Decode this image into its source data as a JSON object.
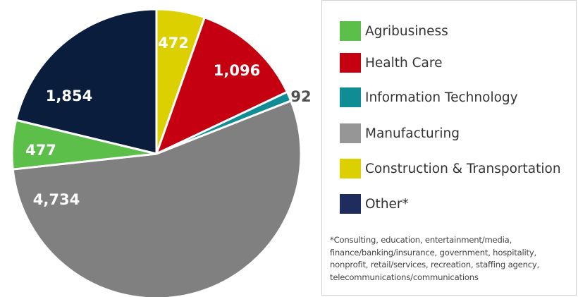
{
  "chart_data": {
    "type": "pie",
    "slices": [
      {
        "name": "Construction & Transportation",
        "value": 472,
        "label": "472",
        "color": "#dcd000"
      },
      {
        "name": "Health Care",
        "value": 1096,
        "label": "1,096",
        "color": "#c50010"
      },
      {
        "name": "Information Technology",
        "value": 92,
        "label": "92",
        "color": "#0f8c94"
      },
      {
        "name": "Manufacturing",
        "value": 4734,
        "label": "4,734",
        "color": "#808080"
      },
      {
        "name": "Agribusiness",
        "value": 477,
        "label": "477",
        "color": "#5cbf4a"
      },
      {
        "name": "Other*",
        "value": 1854,
        "label": "1,854",
        "color": "#0b1d3d"
      }
    ],
    "start_angle_deg": 0,
    "direction": "clockwise"
  },
  "legend": {
    "items": [
      {
        "label": "Agribusiness",
        "color": "#5cbf4a"
      },
      {
        "label": "Health Care",
        "color": "#c50010"
      },
      {
        "label": "Information Technology",
        "color": "#0f8c94"
      },
      {
        "label": "Manufacturing",
        "color": "#969696"
      },
      {
        "label": "Construction & Transportation",
        "color": "#dcd000"
      },
      {
        "label": "Other*",
        "color": "#1f2d5e"
      }
    ],
    "footnote": "*Consulting, education, entertainment/media, finance/banking/insurance, government, hospitality, nonprofit, retail/services, recreation, staffing agency, telecommunications/communications"
  }
}
